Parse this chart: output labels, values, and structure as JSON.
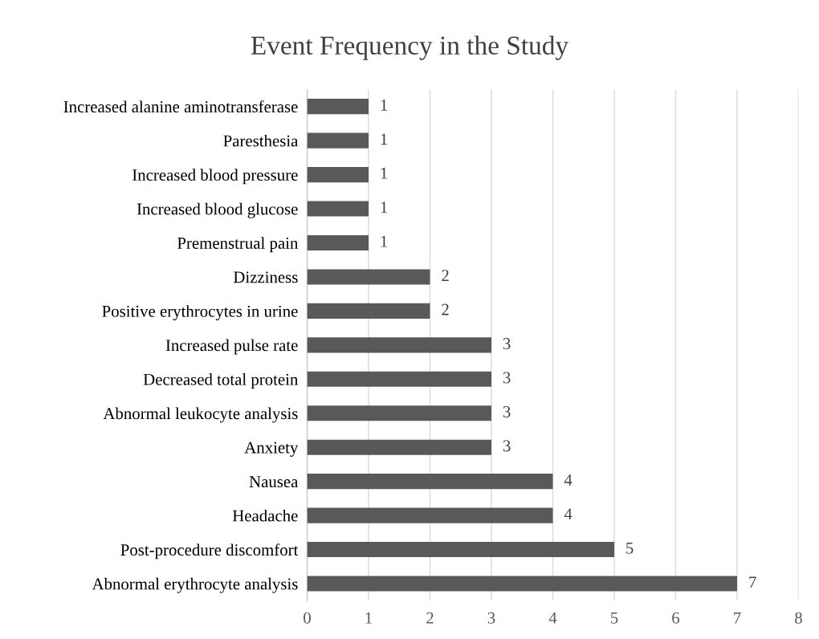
{
  "chart_data": {
    "type": "bar",
    "orientation": "horizontal",
    "title": "Event Frequency in the Study",
    "categories": [
      "Increased alanine aminotransferase",
      "Paresthesia",
      "Increased blood pressure",
      "Increased blood glucose",
      "Premenstrual pain",
      "Dizziness",
      "Positive erythrocytes in urine",
      "Increased pulse rate",
      "Decreased total protein",
      "Abnormal leukocyte analysis",
      "Anxiety",
      "Nausea",
      "Headache",
      "Post-procedure discomfort",
      "Abnormal erythrocyte analysis"
    ],
    "values": [
      1,
      1,
      1,
      1,
      1,
      2,
      2,
      3,
      3,
      3,
      3,
      4,
      4,
      5,
      7
    ],
    "color": "#595959",
    "xlim": [
      0,
      8
    ],
    "xticks": [
      0,
      1,
      2,
      3,
      4,
      5,
      6,
      7,
      8
    ],
    "grid": "x",
    "data_labels": true
  }
}
